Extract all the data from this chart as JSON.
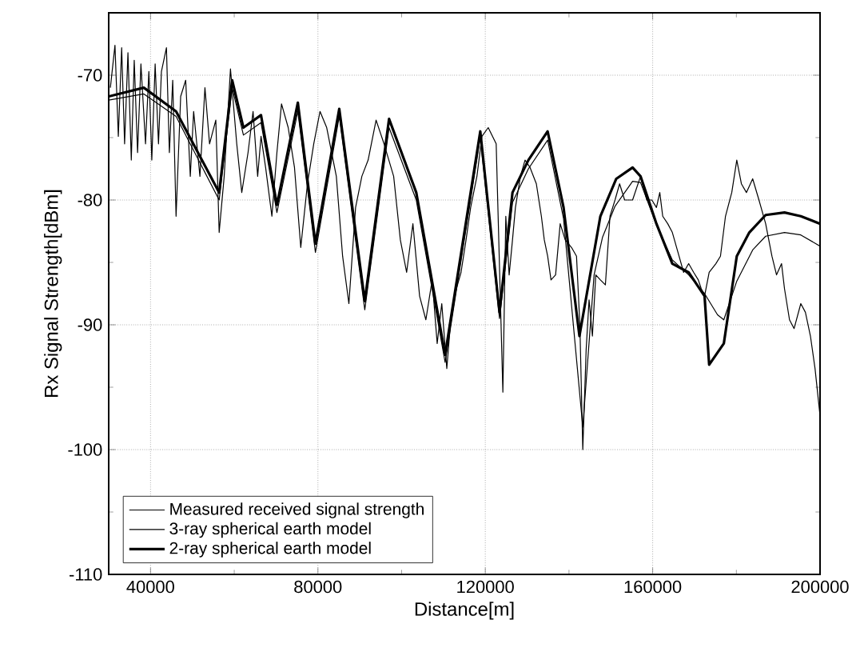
{
  "chart_data": {
    "type": "line",
    "xlabel": "Distance[m]",
    "ylabel": "Rx Signal Strength[dBm]",
    "xlim": [
      30000,
      200000
    ],
    "ylim": [
      -110,
      -65
    ],
    "xticks": [
      40000,
      80000,
      120000,
      160000,
      200000
    ],
    "yticks": [
      -110,
      -100,
      -90,
      -80,
      -70
    ],
    "grid": true,
    "legend": "bottom left",
    "marker": "none",
    "line_style": "solid",
    "series": [
      {
        "name": "Measured received signal strength",
        "color": "#000000",
        "x": [
          30400,
          31500,
          32300,
          33100,
          33800,
          34600,
          35400,
          36100,
          36900,
          37700,
          38800,
          39600,
          40300,
          41100,
          41900,
          42600,
          43800,
          44500,
          45300,
          46100,
          47200,
          48400,
          49500,
          50300,
          51800,
          53000,
          54100,
          55600,
          56400,
          57600,
          59100,
          60600,
          61800,
          63300,
          64500,
          65600,
          66400,
          67500,
          69000,
          70200,
          71300,
          72900,
          74400,
          75900,
          77500,
          79000,
          80500,
          82100,
          84400,
          85900,
          87400,
          89000,
          90500,
          92000,
          93900,
          95800,
          98100,
          99700,
          101200,
          102700,
          104300,
          105800,
          107300,
          108500,
          109600,
          110800,
          111900,
          113100,
          114200,
          115400,
          116500,
          118000,
          119200,
          120700,
          122600,
          124200,
          124900,
          125700,
          126500,
          127200,
          128400,
          129500,
          130700,
          132200,
          133400,
          134100,
          134900,
          135700,
          136800,
          137900,
          139100,
          140600,
          141800,
          142600,
          143300,
          144100,
          144800,
          145600,
          146400,
          147500,
          148700,
          149800,
          151000,
          152100,
          153300,
          155200,
          157100,
          158600,
          159800,
          160900,
          161700,
          162400,
          163600,
          164700,
          166300,
          167400,
          168600,
          169800,
          170900,
          171600,
          172400,
          173500,
          175100,
          176200,
          177400,
          178900,
          180100,
          181200,
          182400,
          183900,
          185400,
          187000,
          188500,
          189600,
          190800,
          191500,
          192700,
          193800,
          195400,
          196500,
          197700,
          198800,
          200000
        ],
        "values": [
          -71.0,
          -67.6,
          -74.9,
          -67.8,
          -75.5,
          -68.2,
          -76.8,
          -68.8,
          -76.2,
          -69.1,
          -75.5,
          -69.7,
          -76.8,
          -69.1,
          -75.5,
          -69.7,
          -67.8,
          -76.2,
          -70.4,
          -81.3,
          -71.7,
          -70.4,
          -78.1,
          -72.9,
          -78.1,
          -71.0,
          -75.5,
          -73.6,
          -82.6,
          -78.1,
          -69.5,
          -75.5,
          -79.4,
          -76.2,
          -72.9,
          -78.1,
          -74.9,
          -77.4,
          -81.3,
          -76.2,
          -72.3,
          -74.2,
          -77.4,
          -83.8,
          -78.7,
          -75.5,
          -72.9,
          -74.2,
          -78.1,
          -84.5,
          -88.3,
          -80.6,
          -78.1,
          -76.8,
          -73.6,
          -75.5,
          -78.1,
          -83.2,
          -85.8,
          -81.9,
          -87.7,
          -89.6,
          -86.4,
          -91.5,
          -88.3,
          -93.5,
          -89.0,
          -87.1,
          -85.8,
          -83.2,
          -80.6,
          -78.1,
          -74.9,
          -74.2,
          -75.5,
          -95.4,
          -81.3,
          -86.0,
          -83.2,
          -80.6,
          -78.1,
          -76.8,
          -77.4,
          -78.7,
          -81.3,
          -83.2,
          -84.5,
          -86.4,
          -86.0,
          -81.9,
          -83.2,
          -83.8,
          -84.5,
          -90.0,
          -100.0,
          -92.0,
          -88.0,
          -90.9,
          -86.0,
          -86.4,
          -86.8,
          -81.3,
          -80.0,
          -78.7,
          -80.0,
          -80.0,
          -78.1,
          -80.0,
          -80.0,
          -80.6,
          -79.4,
          -81.3,
          -81.9,
          -82.6,
          -84.5,
          -85.8,
          -85.1,
          -85.8,
          -86.4,
          -87.1,
          -87.7,
          -85.8,
          -85.1,
          -84.5,
          -81.3,
          -79.4,
          -76.8,
          -78.7,
          -79.4,
          -78.3,
          -80.0,
          -81.9,
          -84.5,
          -86.0,
          -85.1,
          -87.1,
          -89.6,
          -90.3,
          -88.3,
          -89.0,
          -90.9,
          -93.5,
          -97.3
        ]
      },
      {
        "name": "3-ray spherical earth model",
        "color": "#000000",
        "x": [
          30000,
          38400,
          46100,
          56400,
          59500,
          62200,
          66400,
          70200,
          75200,
          79400,
          85100,
          91200,
          97000,
          103500,
          110400,
          118800,
          123400,
          126500,
          130300,
          134900,
          138700,
          143300,
          146000,
          148000,
          151000,
          155200,
          157100,
          160900,
          164700,
          168600,
          172400,
          175500,
          177000,
          180100,
          183900,
          187000,
          191500,
          195400,
          200000
        ],
        "values": [
          -72.0,
          -71.5,
          -73.3,
          -80.0,
          -71.0,
          -74.8,
          -73.8,
          -81.0,
          -72.9,
          -84.2,
          -73.3,
          -88.8,
          -74.2,
          -80.0,
          -93.0,
          -75.0,
          -89.5,
          -80.2,
          -77.5,
          -75.2,
          -81.5,
          -98.2,
          -86.0,
          -83.0,
          -80.5,
          -78.5,
          -78.6,
          -82.0,
          -84.8,
          -86.0,
          -87.5,
          -89.2,
          -89.6,
          -86.5,
          -84.0,
          -82.9,
          -82.6,
          -82.8,
          -83.7
        ]
      },
      {
        "name": "2-ray spherical earth model",
        "color": "#000000",
        "x": [
          30000,
          38400,
          46100,
          56400,
          59500,
          62200,
          66400,
          70200,
          75200,
          79400,
          85100,
          91200,
          97000,
          103500,
          110400,
          118800,
          123400,
          126500,
          130300,
          134900,
          138700,
          142500,
          147500,
          151300,
          155200,
          157100,
          160900,
          164700,
          168600,
          172400,
          173500,
          177000,
          180100,
          183100,
          187000,
          191500,
          195400,
          200000
        ],
        "values": [
          -71.7,
          -71.0,
          -72.9,
          -79.4,
          -70.4,
          -74.2,
          -73.2,
          -80.4,
          -72.2,
          -83.5,
          -72.7,
          -88.1,
          -73.5,
          -79.4,
          -92.4,
          -74.5,
          -89.0,
          -79.4,
          -76.8,
          -74.5,
          -80.6,
          -90.9,
          -81.3,
          -78.3,
          -77.4,
          -78.1,
          -81.9,
          -85.1,
          -85.8,
          -87.7,
          -93.2,
          -91.5,
          -84.5,
          -82.6,
          -81.2,
          -81.0,
          -81.3,
          -81.9
        ]
      }
    ]
  }
}
